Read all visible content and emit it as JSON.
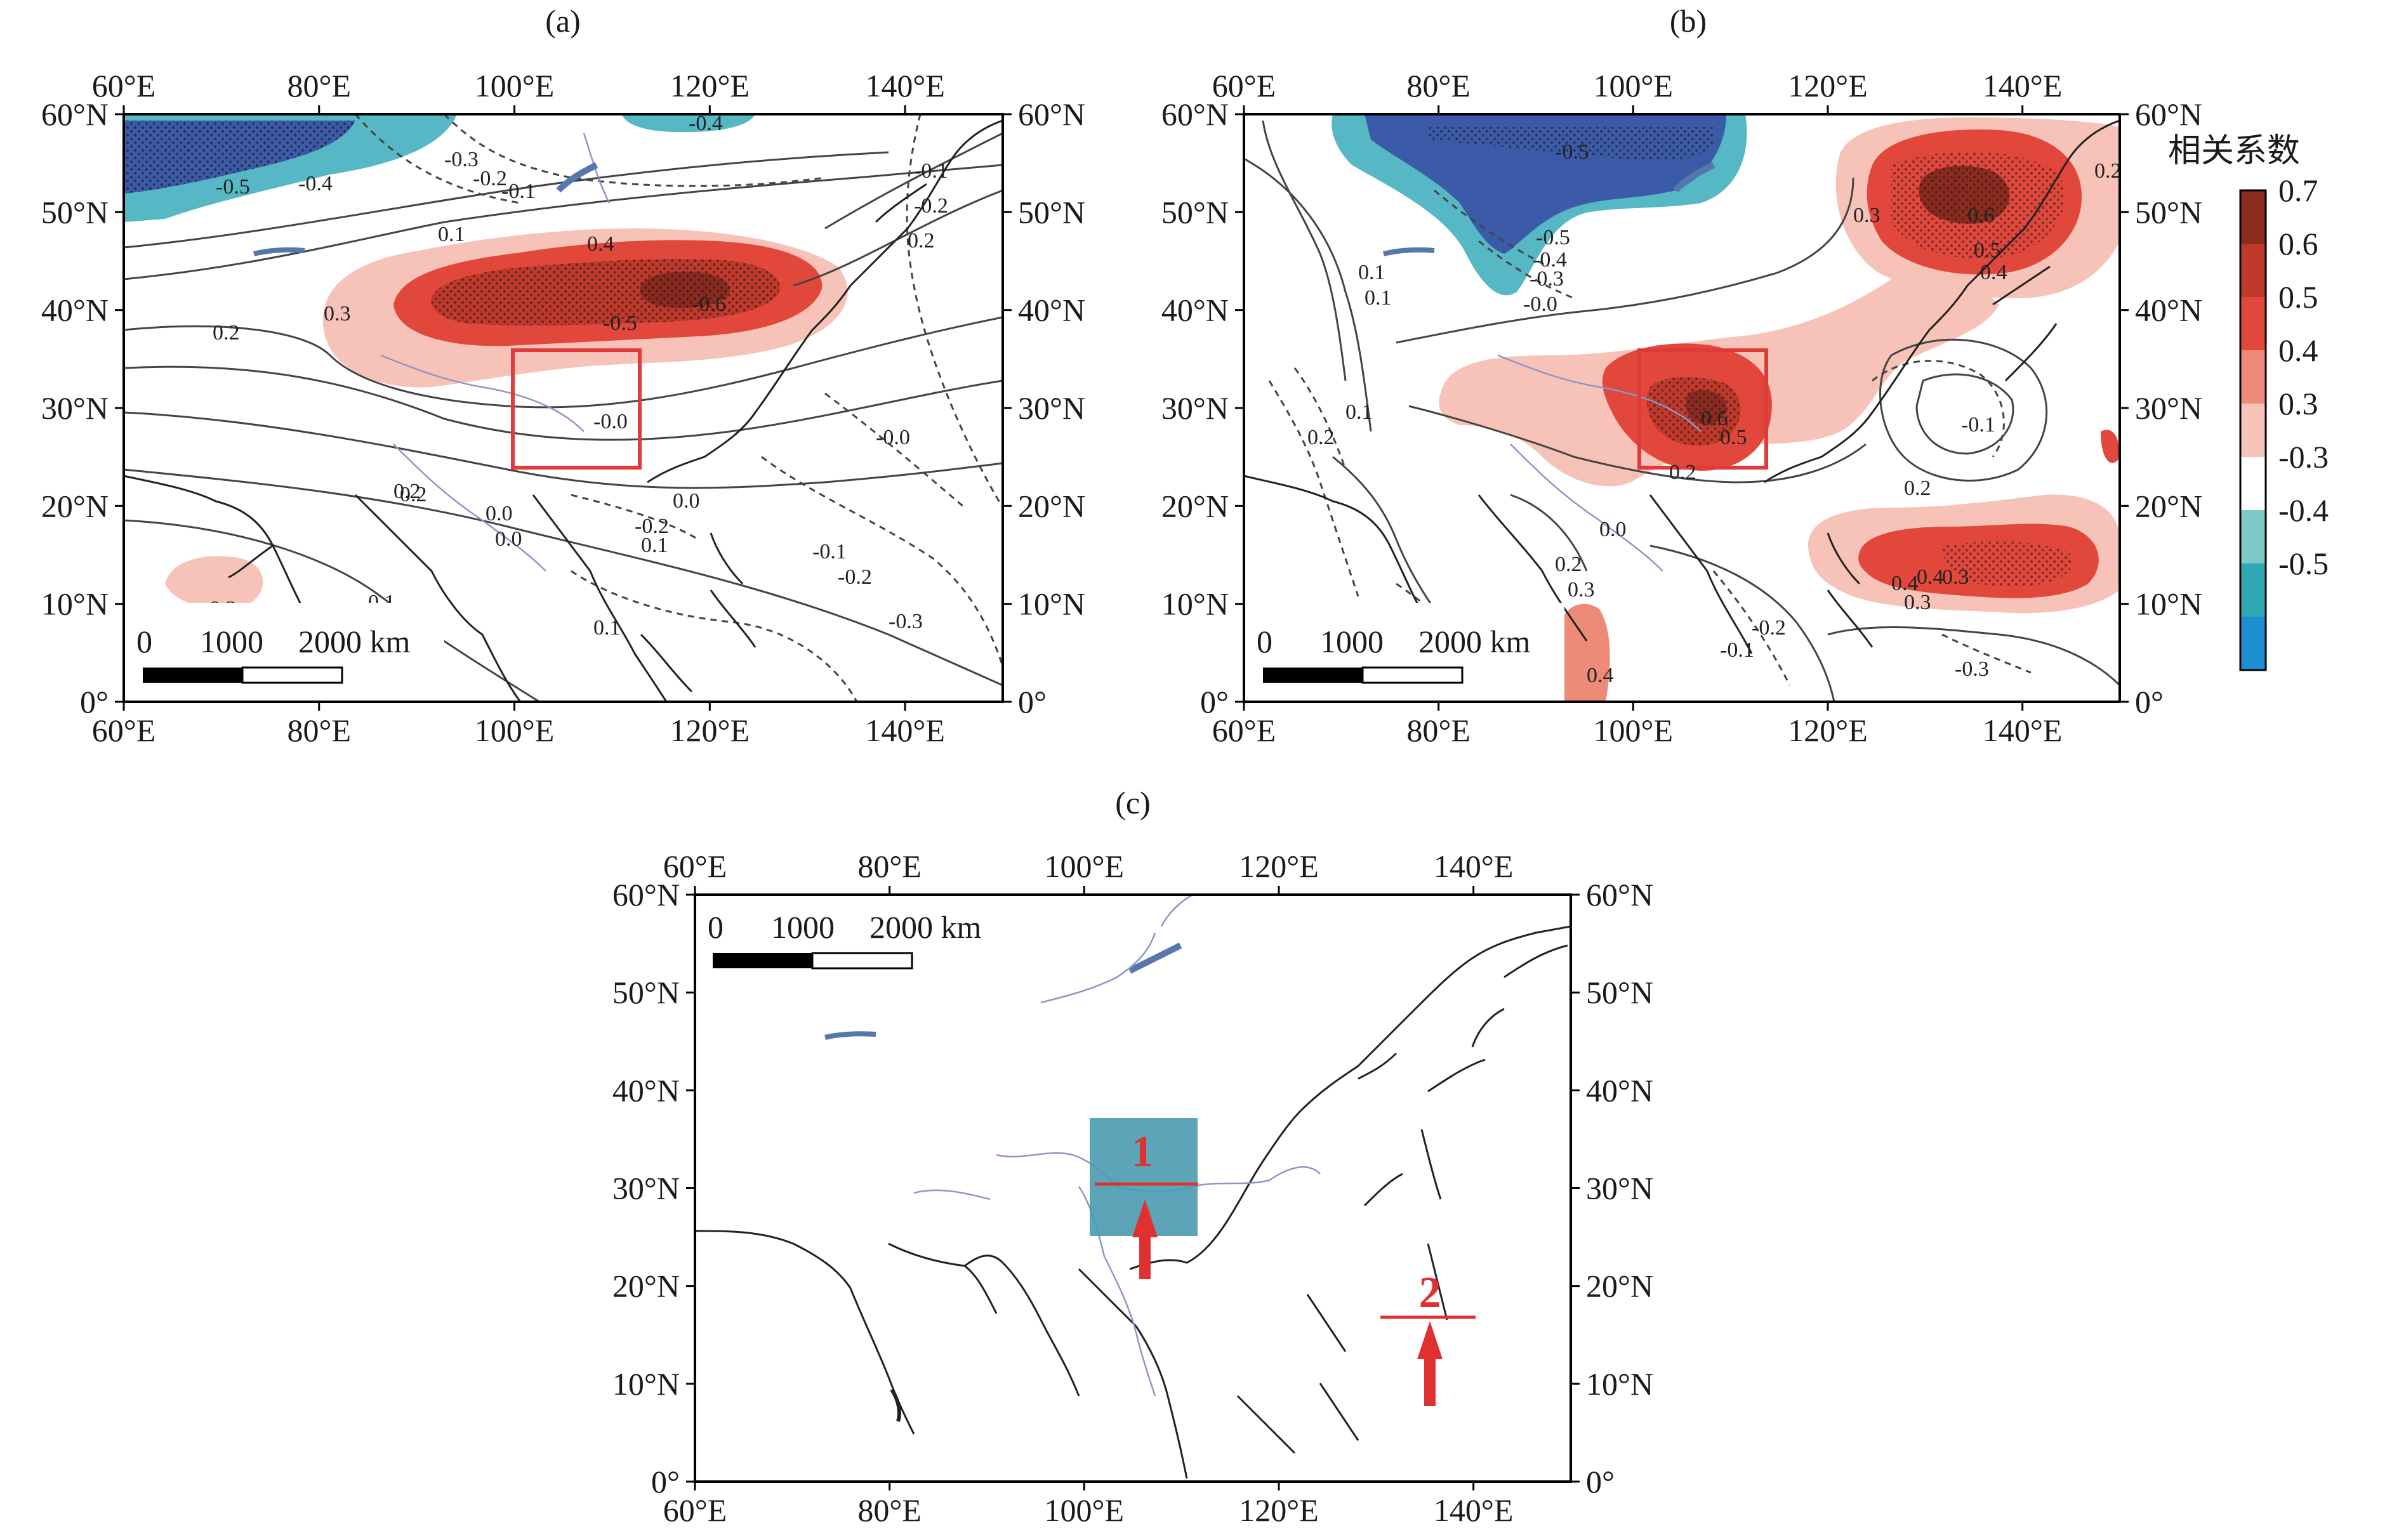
{
  "panels": [
    {
      "id": "a",
      "label": "(a)"
    },
    {
      "id": "b",
      "label": "(b)"
    },
    {
      "id": "c",
      "label": "(c)"
    }
  ],
  "axes": {
    "lon_ticks": [
      "60°E",
      "80°E",
      "100°E",
      "120°E",
      "140°E"
    ],
    "lat_ticks": [
      "60°N",
      "50°N",
      "40°N",
      "30°N",
      "20°N",
      "10°N",
      "0°"
    ]
  },
  "scale_bar": {
    "zero": "0",
    "mid": "1000",
    "end": "2000 km"
  },
  "colorbar": {
    "title": "相关系数",
    "labels": [
      "0.7",
      "0.6",
      "0.5",
      "0.4",
      "0.3",
      "-0.3",
      "-0.4",
      "-0.5"
    ],
    "colors": [
      "#8b2a1f",
      "#c0392b",
      "#e2473c",
      "#ee8a78",
      "#f7c3b8",
      "#ffffff",
      "#7fc8c8",
      "#2fa7b5",
      "#1a8fd1"
    ]
  },
  "panel_a": {
    "contour_labels": [
      "-0.3",
      "-0.2",
      "-0.1",
      "-0.5",
      "-0.4",
      "-0.4",
      "0.1",
      "0.4",
      "0.3",
      "0.2",
      "-0.5",
      "-0.6",
      "0.2",
      "-0.0",
      "0.0",
      "-0.1",
      "-0.2",
      "0.2",
      "0.0",
      "-0.0",
      "-0.2",
      "0.1",
      "0.1",
      "-0.1",
      "-0.2",
      "-0.3",
      "0.3",
      "0.1",
      "0.0",
      "0.2"
    ]
  },
  "panel_b": {
    "contour_labels": [
      "-0.5",
      "0.3",
      "0.6",
      "0.5",
      "0.4",
      "-0.5",
      "-0.4",
      "-0.3",
      "-0.0",
      "0.1",
      "0.2",
      "0.1",
      "0.6",
      "0.5",
      "0.2",
      "-0.1",
      "0.2",
      "0.3",
      "0.4",
      "0.4",
      "0.3",
      "-0.2",
      "-0.1",
      "0.3",
      "0.2",
      "-0.3",
      "0.4",
      "0.2",
      "0.1",
      "0.0"
    ]
  },
  "panel_c": {
    "regions": [
      {
        "number": "1"
      },
      {
        "number": "2"
      }
    ]
  }
}
